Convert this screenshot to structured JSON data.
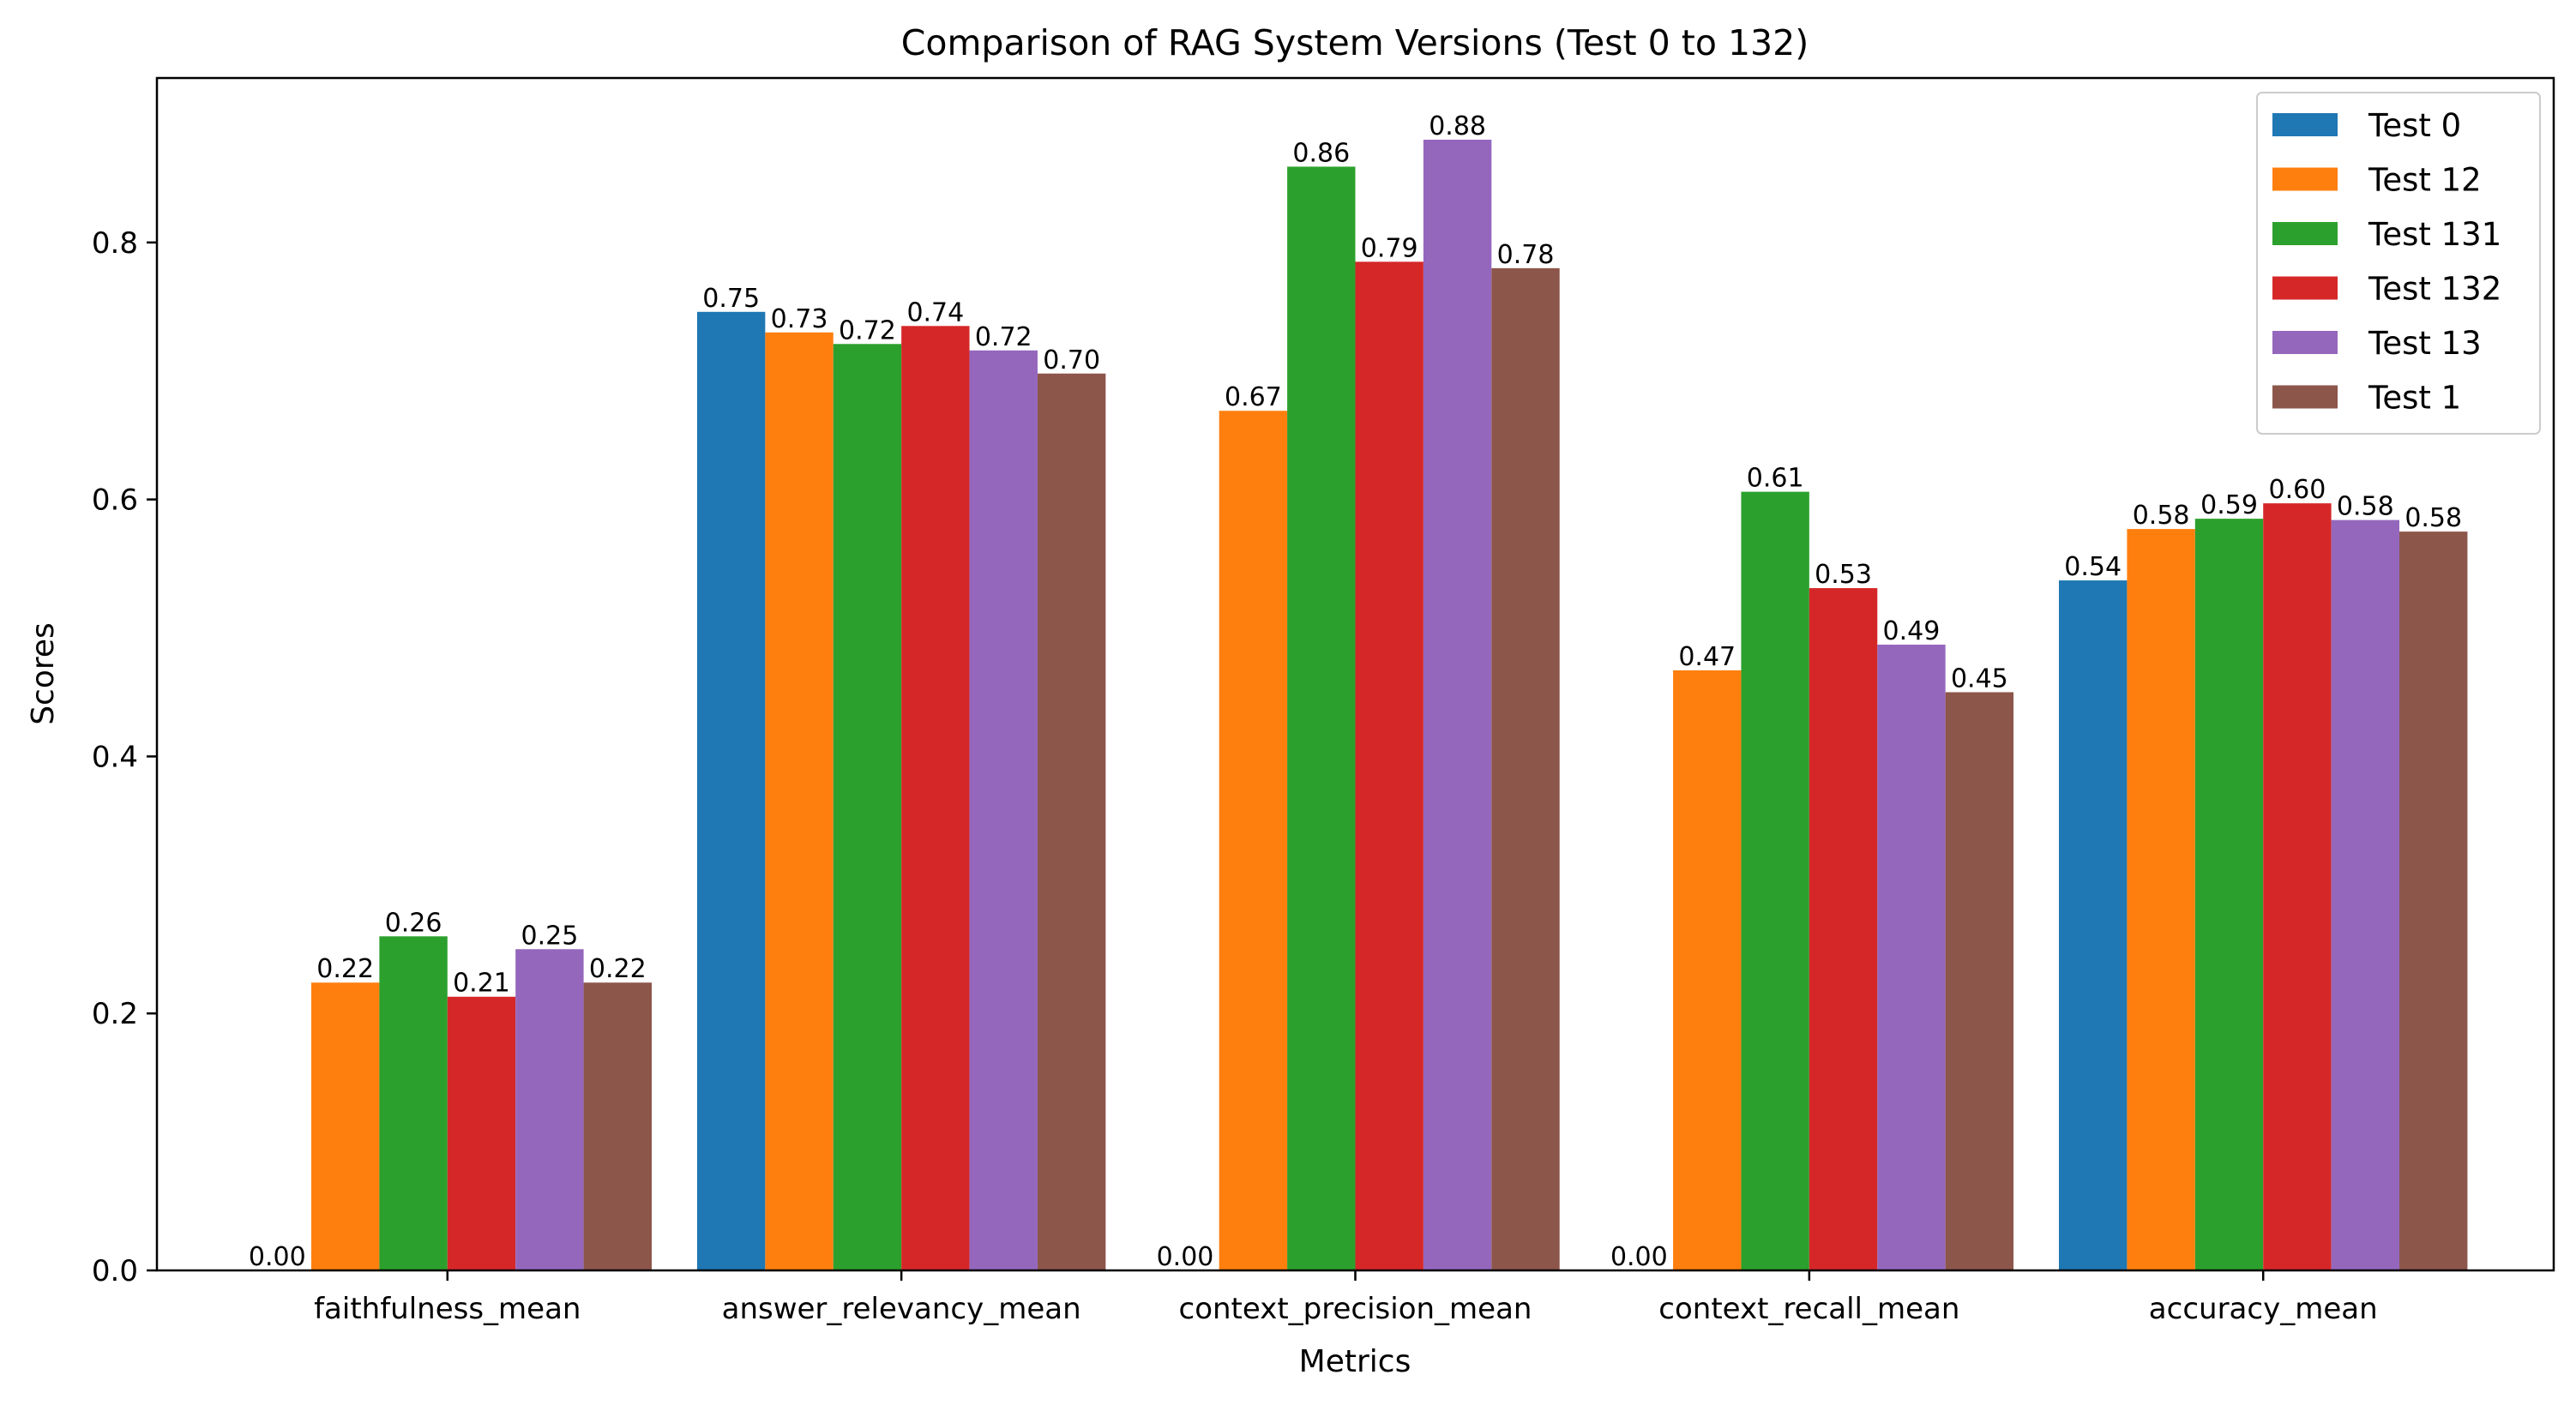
{
  "chart_data": {
    "type": "bar",
    "title": "Comparison of RAG System Versions (Test 0 to 132)",
    "xlabel": "Metrics",
    "ylabel": "Scores",
    "ylim": [
      0,
      0.928
    ],
    "yticks": [
      0.0,
      0.2,
      0.4,
      0.6,
      0.8
    ],
    "ytick_labels": [
      "0.0",
      "0.2",
      "0.4",
      "0.6",
      "0.8"
    ],
    "grid": false,
    "legend_position": "top-right",
    "categories": [
      "faithfulness_mean",
      "answer_relevancy_mean",
      "context_precision_mean",
      "context_recall_mean",
      "accuracy_mean"
    ],
    "series": [
      {
        "name": "Test 0",
        "color": "#1f77b4",
        "values": [
          0.0,
          0.746,
          0.0,
          0.0,
          0.537
        ],
        "labels": [
          "0.00",
          "0.75",
          "0.00",
          "0.00",
          "0.54"
        ]
      },
      {
        "name": "Test 12",
        "color": "#ff7f0e",
        "values": [
          0.224,
          0.73,
          0.669,
          0.467,
          0.577
        ],
        "labels": [
          "0.22",
          "0.73",
          "0.67",
          "0.47",
          "0.58"
        ]
      },
      {
        "name": "Test 131",
        "color": "#2ca02c",
        "values": [
          0.26,
          0.721,
          0.859,
          0.606,
          0.585
        ],
        "labels": [
          "0.26",
          "0.72",
          "0.86",
          "0.61",
          "0.59"
        ]
      },
      {
        "name": "Test 132",
        "color": "#d62728",
        "values": [
          0.213,
          0.735,
          0.785,
          0.531,
          0.597
        ],
        "labels": [
          "0.21",
          "0.74",
          "0.79",
          "0.53",
          "0.60"
        ]
      },
      {
        "name": "Test 13",
        "color": "#9467bd",
        "values": [
          0.25,
          0.716,
          0.88,
          0.487,
          0.584
        ],
        "labels": [
          "0.25",
          "0.72",
          "0.88",
          "0.49",
          "0.58"
        ]
      },
      {
        "name": "Test 1",
        "color": "#8c564b",
        "values": [
          0.224,
          0.698,
          0.78,
          0.45,
          0.575
        ],
        "labels": [
          "0.22",
          "0.70",
          "0.78",
          "0.45",
          "0.58"
        ]
      }
    ]
  }
}
